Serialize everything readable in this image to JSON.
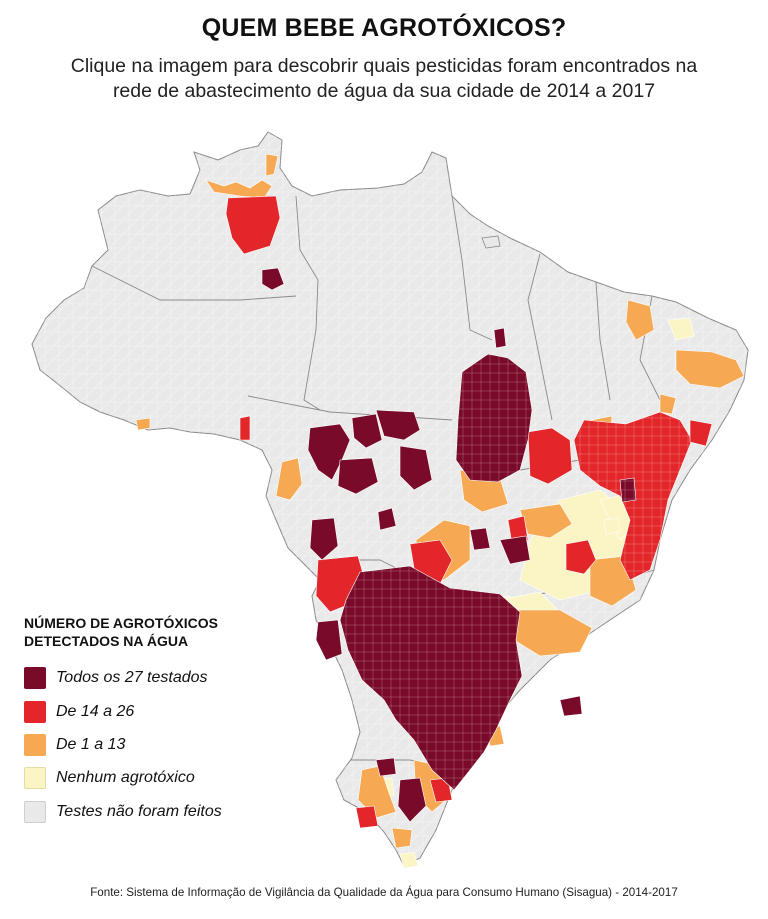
{
  "header": {
    "title": "QUEM BEBE AGROTÓXICOS?",
    "subtitle_line1": "Clique na imagem para descobrir quais pesticidas foram encontrados na",
    "subtitle_line2": "rede de abastecimento de água da sua cidade de 2014 a 2017"
  },
  "legend": {
    "title_line1": "NÚMERO DE AGROTÓXICOS",
    "title_line2": "DETECTADOS NA ÁGUA",
    "items": [
      {
        "label": "Todos os 27 testados",
        "color": "#7a0a2a"
      },
      {
        "label": "De 14 a 26",
        "color": "#e3262a"
      },
      {
        "label": "De 1 a 13",
        "color": "#f6a852"
      },
      {
        "label": "Nenhum agrotóxico",
        "color": "#fbf5c6"
      },
      {
        "label": "Testes não foram feitos",
        "color": "#e9e9e9"
      }
    ]
  },
  "colors": {
    "no_test": "#e9e9e9",
    "border": "#ffffff",
    "outline": "#7a7a7a"
  },
  "source": "Fonte: Sistema de Informação de Vigilância da Qualidade da Água para Consumo Humano (Sisagua) - 2014-2017"
}
